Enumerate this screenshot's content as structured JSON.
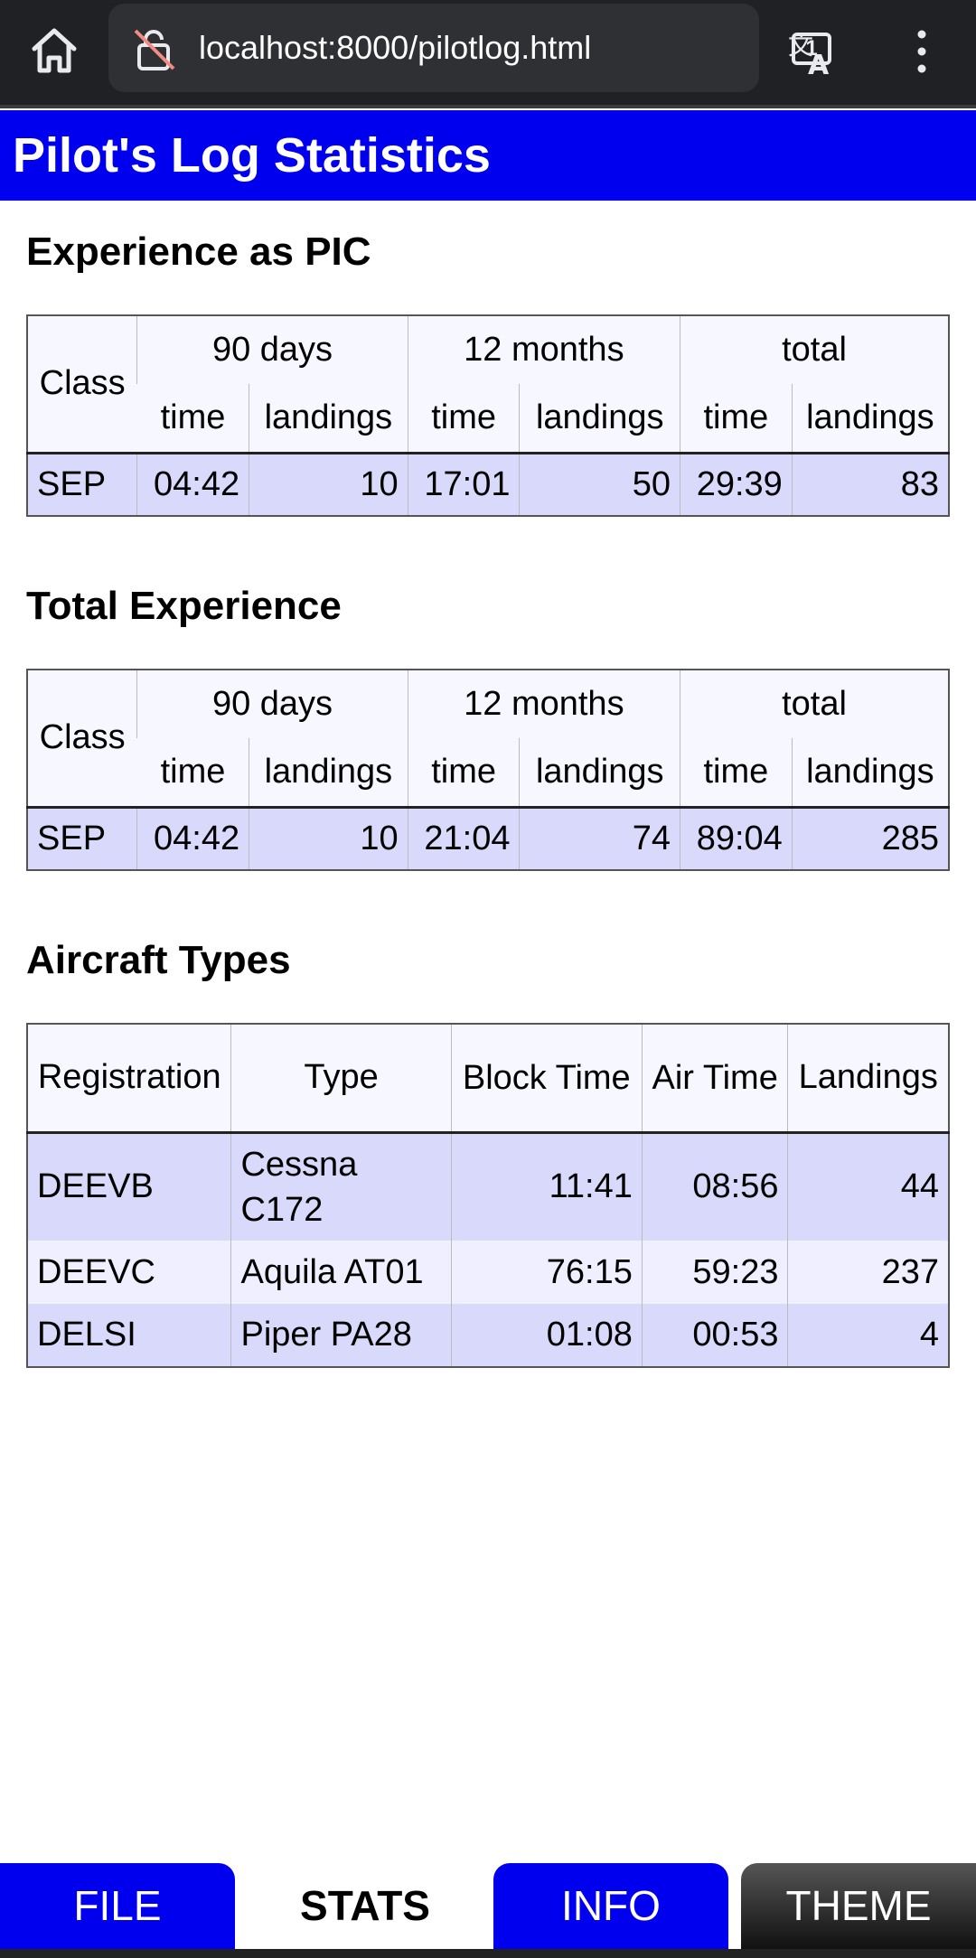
{
  "browser": {
    "url": "localhost:8000/pilotlog.html",
    "tab_count": "1"
  },
  "header": {
    "title": "Pilot's Log Statistics"
  },
  "pic": {
    "title": "Experience as PIC",
    "head": {
      "class": "Class",
      "d90": "90 days",
      "m12": "12 months",
      "total": "total",
      "time": "time",
      "landings": "landings"
    },
    "row": {
      "class": "SEP",
      "d90_time": "04:42",
      "d90_landings": "10",
      "m12_time": "17:01",
      "m12_landings": "50",
      "total_time": "29:39",
      "total_landings": "83"
    }
  },
  "total": {
    "title": "Total Experience",
    "head": {
      "class": "Class",
      "d90": "90 days",
      "m12": "12 months",
      "total": "total",
      "time": "time",
      "landings": "landings"
    },
    "row": {
      "class": "SEP",
      "d90_time": "04:42",
      "d90_landings": "10",
      "m12_time": "21:04",
      "m12_landings": "74",
      "total_time": "89:04",
      "total_landings": "285"
    }
  },
  "aircraft": {
    "title": "Aircraft Types",
    "head": {
      "registration": "Registration",
      "type": "Type",
      "block_time": "Block Time",
      "air_time": "Air Time",
      "landings": "Landings"
    },
    "rows": [
      {
        "registration": "DEEVB",
        "type": "Cessna C172",
        "block_time": "11:41",
        "air_time": "08:56",
        "landings": "44"
      },
      {
        "registration": "DEEVC",
        "type": "Aquila AT01",
        "block_time": "76:15",
        "air_time": "59:23",
        "landings": "237"
      },
      {
        "registration": "DELSI",
        "type": "Piper PA28",
        "block_time": "01:08",
        "air_time": "00:53",
        "landings": "4"
      }
    ]
  },
  "tabs": {
    "file": "FILE",
    "stats": "STATS",
    "info": "INFO",
    "theme": "THEME"
  },
  "colors": {
    "accent": "#0000ee",
    "row_odd": "#d9d9fb",
    "row_even": "#efefff"
  }
}
